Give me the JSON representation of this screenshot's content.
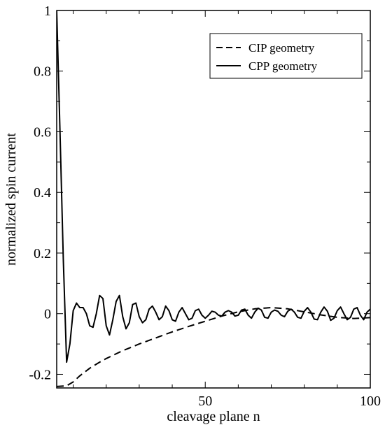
{
  "chart_data": {
    "type": "line",
    "xlabel": "cleavage plane n",
    "ylabel": "normalized spin current",
    "xlim": [
      5,
      100
    ],
    "ylim": [
      -0.245,
      1.0
    ],
    "x_ticks": [
      50,
      100
    ],
    "y_ticks": [
      -0.2,
      0,
      0.2,
      0.4,
      0.6,
      0.8,
      1
    ],
    "y_tick_labels": [
      "-0.2",
      "0",
      "0.2",
      "0.4",
      "0.6",
      "0.8",
      "1"
    ],
    "grid": false,
    "legend_position": "top-right",
    "series": [
      {
        "name": "CIP geometry",
        "style": "dashed",
        "color": "#000000",
        "x": [
          5,
          8,
          10,
          12,
          15,
          18,
          20,
          25,
          30,
          35,
          40,
          45,
          50,
          55,
          60,
          65,
          70,
          75,
          80,
          85,
          90,
          95,
          100
        ],
        "y": [
          -0.24,
          -0.238,
          -0.225,
          -0.205,
          -0.18,
          -0.16,
          -0.148,
          -0.122,
          -0.1,
          -0.08,
          -0.06,
          -0.042,
          -0.025,
          -0.008,
          0.006,
          0.016,
          0.02,
          0.016,
          0.006,
          -0.004,
          -0.012,
          -0.016,
          -0.013
        ]
      },
      {
        "name": "CPP geometry",
        "style": "solid",
        "color": "#000000",
        "x": [
          5,
          6,
          7,
          8,
          9,
          10,
          11,
          12,
          13,
          14,
          15,
          16,
          17,
          18,
          19,
          20,
          21,
          22,
          23,
          24,
          25,
          26,
          27,
          28,
          29,
          30,
          31,
          32,
          33,
          34,
          35,
          36,
          37,
          38,
          39,
          40,
          41,
          42,
          43,
          44,
          45,
          46,
          47,
          48,
          49,
          50,
          51,
          52,
          53,
          54,
          55,
          56,
          57,
          58,
          59,
          60,
          61,
          62,
          63,
          64,
          65,
          66,
          67,
          68,
          69,
          70,
          71,
          72,
          73,
          74,
          75,
          76,
          77,
          78,
          79,
          80,
          81,
          82,
          83,
          84,
          85,
          86,
          87,
          88,
          89,
          90,
          91,
          92,
          93,
          94,
          95,
          96,
          97,
          98,
          99,
          100
        ],
        "y": [
          1.0,
          0.6,
          0.18,
          -0.16,
          -0.1,
          0.01,
          0.035,
          0.02,
          0.02,
          0.0,
          -0.04,
          -0.045,
          0.0,
          0.06,
          0.05,
          -0.04,
          -0.07,
          -0.02,
          0.04,
          0.06,
          -0.01,
          -0.05,
          -0.03,
          0.03,
          0.035,
          -0.01,
          -0.03,
          -0.02,
          0.015,
          0.025,
          0.005,
          -0.02,
          -0.01,
          0.025,
          0.01,
          -0.02,
          -0.025,
          0.005,
          0.02,
          0.0,
          -0.02,
          -0.015,
          0.01,
          0.015,
          -0.005,
          -0.015,
          -0.005,
          0.008,
          0.005,
          -0.005,
          -0.008,
          0.005,
          0.01,
          0.005,
          -0.008,
          -0.005,
          0.012,
          0.015,
          -0.005,
          -0.015,
          0.005,
          0.018,
          0.012,
          -0.012,
          -0.015,
          0.005,
          0.012,
          0.008,
          -0.005,
          -0.01,
          0.008,
          0.015,
          0.005,
          -0.012,
          -0.015,
          0.008,
          0.02,
          0.005,
          -0.018,
          -0.02,
          0.005,
          0.022,
          0.008,
          -0.022,
          -0.015,
          0.01,
          0.022,
          0.0,
          -0.02,
          -0.012,
          0.015,
          0.02,
          -0.005,
          -0.02,
          0.005,
          0.015
        ]
      }
    ]
  }
}
